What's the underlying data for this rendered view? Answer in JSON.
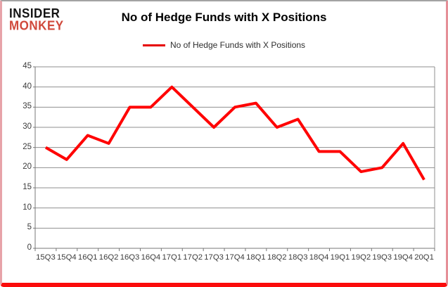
{
  "logo": {
    "line1": "INSIDER",
    "line2": "MONKEY"
  },
  "header": {
    "title": "No of Hedge Funds with X Positions"
  },
  "legend": {
    "label": "No of Hedge Funds with X Positions"
  },
  "colors": {
    "line": "#ff0000",
    "legend_swatch": "#e60000",
    "gridline": "#8f8f8f",
    "axis": "#777777",
    "axis_text": "#3c3c3c",
    "logo_black": "#141414",
    "logo_red": "#d0493b",
    "frame_bottom": "#fb0c0c",
    "frame_sides": "#e7a3a9",
    "frame_top": "#a3a3a3"
  },
  "chart_data": {
    "type": "line",
    "title": "No of Hedge Funds with X Positions",
    "categories": [
      "15Q3",
      "15Q4",
      "16Q1",
      "16Q2",
      "16Q3",
      "16Q4",
      "17Q1",
      "17Q2",
      "17Q3",
      "17Q4",
      "18Q1",
      "18Q2",
      "18Q3",
      "18Q4",
      "19Q1",
      "19Q2",
      "19Q3",
      "19Q4",
      "20Q1"
    ],
    "series": [
      {
        "name": "No of Hedge Funds with X Positions",
        "color": "#ff0000",
        "values": [
          25,
          22,
          28,
          26,
          35,
          35,
          40,
          35,
          30,
          35,
          36,
          30,
          32,
          24,
          24,
          19,
          20,
          26,
          17
        ]
      }
    ],
    "xlabel": "",
    "ylabel": "",
    "ylim": [
      0,
      45
    ],
    "yticks": [
      45,
      40,
      35,
      30,
      25,
      20,
      15,
      10,
      5,
      0
    ],
    "grid": true,
    "legend_position": "top-center"
  }
}
